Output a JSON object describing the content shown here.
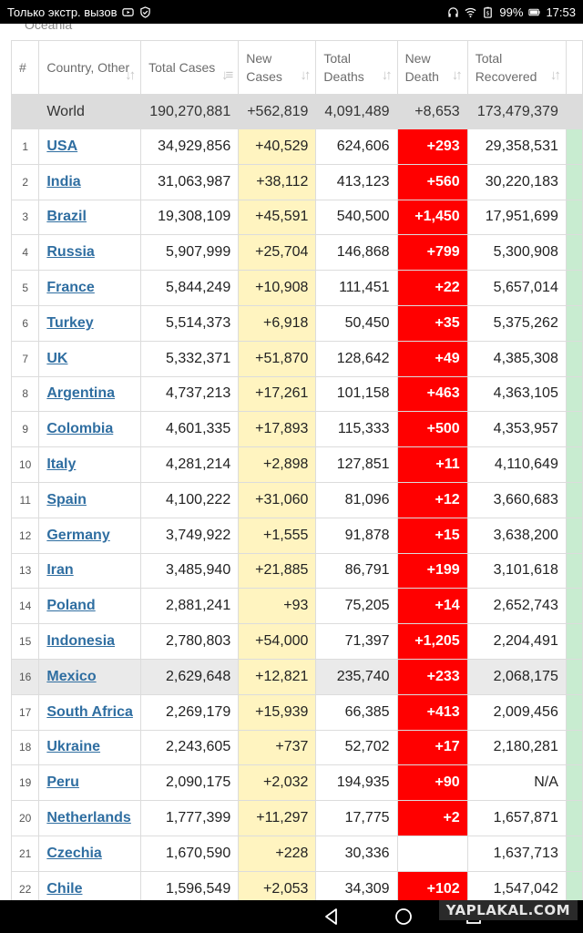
{
  "status_bar": {
    "carrier": "Только экстр. вызов",
    "battery": "99%",
    "time": "17:53"
  },
  "region_peek": "Oceania",
  "table": {
    "headers": {
      "num": "#",
      "country": "Country, Other",
      "total_cases": "Total Cases",
      "new_cases": "New Cases",
      "total_deaths": "Total Deaths",
      "new_deaths": "New Death",
      "total_recovered": "Total Recovered"
    },
    "world": {
      "label": "World",
      "total_cases": "190,270,881",
      "new_cases": "+562,819",
      "total_deaths": "4,091,489",
      "new_deaths": "+8,653",
      "total_recovered": "173,479,379"
    },
    "rows": [
      {
        "n": "1",
        "country": "USA",
        "total_cases": "34,929,856",
        "new_cases": "+40,529",
        "total_deaths": "624,606",
        "new_deaths": "+293",
        "recovered": "29,358,531"
      },
      {
        "n": "2",
        "country": "India",
        "total_cases": "31,063,987",
        "new_cases": "+38,112",
        "total_deaths": "413,123",
        "new_deaths": "+560",
        "recovered": "30,220,183"
      },
      {
        "n": "3",
        "country": "Brazil",
        "total_cases": "19,308,109",
        "new_cases": "+45,591",
        "total_deaths": "540,500",
        "new_deaths": "+1,450",
        "recovered": "17,951,699"
      },
      {
        "n": "4",
        "country": "Russia",
        "total_cases": "5,907,999",
        "new_cases": "+25,704",
        "total_deaths": "146,868",
        "new_deaths": "+799",
        "recovered": "5,300,908"
      },
      {
        "n": "5",
        "country": "France",
        "total_cases": "5,844,249",
        "new_cases": "+10,908",
        "total_deaths": "111,451",
        "new_deaths": "+22",
        "recovered": "5,657,014"
      },
      {
        "n": "6",
        "country": "Turkey",
        "total_cases": "5,514,373",
        "new_cases": "+6,918",
        "total_deaths": "50,450",
        "new_deaths": "+35",
        "recovered": "5,375,262"
      },
      {
        "n": "7",
        "country": "UK",
        "total_cases": "5,332,371",
        "new_cases": "+51,870",
        "total_deaths": "128,642",
        "new_deaths": "+49",
        "recovered": "4,385,308"
      },
      {
        "n": "8",
        "country": "Argentina",
        "total_cases": "4,737,213",
        "new_cases": "+17,261",
        "total_deaths": "101,158",
        "new_deaths": "+463",
        "recovered": "4,363,105"
      },
      {
        "n": "9",
        "country": "Colombia",
        "total_cases": "4,601,335",
        "new_cases": "+17,893",
        "total_deaths": "115,333",
        "new_deaths": "+500",
        "recovered": "4,353,957"
      },
      {
        "n": "10",
        "country": "Italy",
        "total_cases": "4,281,214",
        "new_cases": "+2,898",
        "total_deaths": "127,851",
        "new_deaths": "+11",
        "recovered": "4,110,649"
      },
      {
        "n": "11",
        "country": "Spain",
        "total_cases": "4,100,222",
        "new_cases": "+31,060",
        "total_deaths": "81,096",
        "new_deaths": "+12",
        "recovered": "3,660,683"
      },
      {
        "n": "12",
        "country": "Germany",
        "total_cases": "3,749,922",
        "new_cases": "+1,555",
        "total_deaths": "91,878",
        "new_deaths": "+15",
        "recovered": "3,638,200"
      },
      {
        "n": "13",
        "country": "Iran",
        "total_cases": "3,485,940",
        "new_cases": "+21,885",
        "total_deaths": "86,791",
        "new_deaths": "+199",
        "recovered": "3,101,618"
      },
      {
        "n": "14",
        "country": "Poland",
        "total_cases": "2,881,241",
        "new_cases": "+93",
        "total_deaths": "75,205",
        "new_deaths": "+14",
        "recovered": "2,652,743"
      },
      {
        "n": "15",
        "country": "Indonesia",
        "total_cases": "2,780,803",
        "new_cases": "+54,000",
        "total_deaths": "71,397",
        "new_deaths": "+1,205",
        "recovered": "2,204,491"
      },
      {
        "n": "16",
        "country": "Mexico",
        "total_cases": "2,629,648",
        "new_cases": "+12,821",
        "total_deaths": "235,740",
        "new_deaths": "+233",
        "recovered": "2,068,175"
      },
      {
        "n": "17",
        "country": "South Africa",
        "total_cases": "2,269,179",
        "new_cases": "+15,939",
        "total_deaths": "66,385",
        "new_deaths": "+413",
        "recovered": "2,009,456"
      },
      {
        "n": "18",
        "country": "Ukraine",
        "total_cases": "2,243,605",
        "new_cases": "+737",
        "total_deaths": "52,702",
        "new_deaths": "+17",
        "recovered": "2,180,281"
      },
      {
        "n": "19",
        "country": "Peru",
        "total_cases": "2,090,175",
        "new_cases": "+2,032",
        "total_deaths": "194,935",
        "new_deaths": "+90",
        "recovered": "N/A"
      },
      {
        "n": "20",
        "country": "Netherlands",
        "total_cases": "1,777,399",
        "new_cases": "+11,297",
        "total_deaths": "17,775",
        "new_deaths": "+2",
        "recovered": "1,657,871"
      },
      {
        "n": "21",
        "country": "Czechia",
        "total_cases": "1,670,590",
        "new_cases": "+228",
        "total_deaths": "30,336",
        "new_deaths": "",
        "recovered": "1,637,713"
      },
      {
        "n": "22",
        "country": "Chile",
        "total_cases": "1,596,549",
        "new_cases": "+2,053",
        "total_deaths": "34,309",
        "new_deaths": "+102",
        "recovered": "1,547,042"
      }
    ]
  },
  "watermark": "YAPLAKAL.COM",
  "colors": {
    "new_cases_bg": "#fff4c0",
    "new_deaths_bg": "#ff0000",
    "link": "#2f6ea1",
    "world_row_bg": "#dcdcdc"
  }
}
